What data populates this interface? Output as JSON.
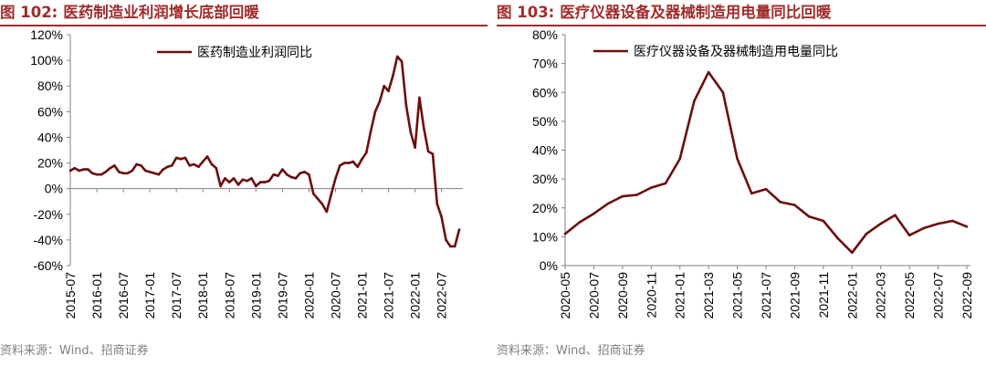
{
  "left": {
    "fig_label": "图 102:",
    "fig_title": "医药制造业利润增长底部回暖",
    "source": "资料来源：Wind、招商证券",
    "chart_data": {
      "type": "line",
      "title": "",
      "xlabel": "",
      "ylabel": "",
      "ylim": [
        -60,
        120
      ],
      "yticks": [
        "120%",
        "100%",
        "80%",
        "60%",
        "40%",
        "20%",
        "0%",
        "-20%",
        "-40%",
        "-60%"
      ],
      "xticks": [
        "2015-07",
        "2016-01",
        "2016-07",
        "2017-01",
        "2017-07",
        "2018-01",
        "2018-07",
        "2019-01",
        "2019-07",
        "2020-01",
        "2020-07",
        "2021-01",
        "2021-07",
        "2022-01",
        "2022-07"
      ],
      "legend_position": "top",
      "line_color": "#6b0f0f",
      "series": [
        {
          "name": "医药制造业利润同比",
          "points": [
            [
              "2015-07",
              14
            ],
            [
              "2015-08",
              16
            ],
            [
              "2015-09",
              14
            ],
            [
              "2015-10",
              15
            ],
            [
              "2015-11",
              15
            ],
            [
              "2015-12",
              12
            ],
            [
              "2016-01",
              11
            ],
            [
              "2016-02",
              11
            ],
            [
              "2016-03",
              13
            ],
            [
              "2016-04",
              16
            ],
            [
              "2016-05",
              18
            ],
            [
              "2016-06",
              13
            ],
            [
              "2016-07",
              12
            ],
            [
              "2016-08",
              12
            ],
            [
              "2016-09",
              14
            ],
            [
              "2016-10",
              19
            ],
            [
              "2016-11",
              18
            ],
            [
              "2016-12",
              14
            ],
            [
              "2017-01",
              13
            ],
            [
              "2017-02",
              12
            ],
            [
              "2017-03",
              11
            ],
            [
              "2017-04",
              15
            ],
            [
              "2017-05",
              17
            ],
            [
              "2017-06",
              18
            ],
            [
              "2017-07",
              24
            ],
            [
              "2017-08",
              23
            ],
            [
              "2017-09",
              24
            ],
            [
              "2017-10",
              18
            ],
            [
              "2017-11",
              19
            ],
            [
              "2017-12",
              17
            ],
            [
              "2018-01",
              21
            ],
            [
              "2018-02",
              25
            ],
            [
              "2018-03",
              19
            ],
            [
              "2018-04",
              16
            ],
            [
              "2018-05",
              2
            ],
            [
              "2018-06",
              8
            ],
            [
              "2018-07",
              5
            ],
            [
              "2018-08",
              8
            ],
            [
              "2018-09",
              3
            ],
            [
              "2018-10",
              7
            ],
            [
              "2018-11",
              6
            ],
            [
              "2018-12",
              8
            ],
            [
              "2019-01",
              2
            ],
            [
              "2019-02",
              5
            ],
            [
              "2019-03",
              5
            ],
            [
              "2019-04",
              6
            ],
            [
              "2019-05",
              11
            ],
            [
              "2019-06",
              10
            ],
            [
              "2019-07",
              15
            ],
            [
              "2019-08",
              11
            ],
            [
              "2019-09",
              9
            ],
            [
              "2019-10",
              8
            ],
            [
              "2019-11",
              12
            ],
            [
              "2019-12",
              13
            ],
            [
              "2020-01",
              11
            ],
            [
              "2020-02",
              -4
            ],
            [
              "2020-03",
              -8
            ],
            [
              "2020-04",
              -12
            ],
            [
              "2020-05",
              -18
            ],
            [
              "2020-06",
              -5
            ],
            [
              "2020-07",
              8
            ],
            [
              "2020-08",
              18
            ],
            [
              "2020-09",
              20
            ],
            [
              "2020-10",
              20
            ],
            [
              "2020-11",
              21
            ],
            [
              "2020-12",
              17
            ],
            [
              "2021-01",
              23
            ],
            [
              "2021-02",
              28
            ],
            [
              "2021-03",
              45
            ],
            [
              "2021-04",
              60
            ],
            [
              "2021-05",
              68
            ],
            [
              "2021-06",
              80
            ],
            [
              "2021-07",
              76
            ],
            [
              "2021-08",
              88
            ],
            [
              "2021-09",
              103
            ],
            [
              "2021-10",
              99
            ],
            [
              "2021-11",
              65
            ],
            [
              "2021-12",
              44
            ],
            [
              "2022-01",
              32
            ],
            [
              "2022-02",
              71
            ],
            [
              "2022-03",
              47
            ],
            [
              "2022-04",
              29
            ],
            [
              "2022-05",
              27
            ],
            [
              "2022-06",
              -12
            ],
            [
              "2022-07",
              -22
            ],
            [
              "2022-08",
              -40
            ],
            [
              "2022-09",
              -45
            ],
            [
              "2022-10",
              -45
            ],
            [
              "2022-11",
              -32
            ]
          ]
        }
      ]
    }
  },
  "right": {
    "fig_label": "图 103:",
    "fig_title": "医疗仪器设备及器械制造用电量同比回暖",
    "source": "资料来源：Wind、招商证券",
    "chart_data": {
      "type": "line",
      "title": "",
      "xlabel": "",
      "ylabel": "",
      "ylim": [
        0,
        80
      ],
      "yticks": [
        "80%",
        "70%",
        "60%",
        "50%",
        "40%",
        "30%",
        "20%",
        "10%",
        "0%"
      ],
      "xticks": [
        "2020-05",
        "2020-07",
        "2020-09",
        "2020-11",
        "2021-01",
        "2021-03",
        "2021-05",
        "2021-07",
        "2021-09",
        "2021-11",
        "2022-01",
        "2022-03",
        "2022-05",
        "2022-07",
        "2022-09"
      ],
      "legend_position": "top",
      "line_color": "#6b0f0f",
      "series": [
        {
          "name": "医疗仪器设备及器械制造用电量同比",
          "points": [
            [
              "2020-05",
              11
            ],
            [
              "2020-06",
              15
            ],
            [
              "2020-07",
              18
            ],
            [
              "2020-08",
              21.5
            ],
            [
              "2020-09",
              24
            ],
            [
              "2020-10",
              24.5
            ],
            [
              "2020-11",
              27
            ],
            [
              "2020-12",
              28.5
            ],
            [
              "2021-01",
              37
            ],
            [
              "2021-02",
              57
            ],
            [
              "2021-03",
              67
            ],
            [
              "2021-04",
              60
            ],
            [
              "2021-05",
              37
            ],
            [
              "2021-06",
              25
            ],
            [
              "2021-07",
              26.5
            ],
            [
              "2021-08",
              22
            ],
            [
              "2021-09",
              21
            ],
            [
              "2021-10",
              17
            ],
            [
              "2021-11",
              15.5
            ],
            [
              "2021-12",
              9.5
            ],
            [
              "2022-01",
              4.5
            ],
            [
              "2022-02",
              11
            ],
            [
              "2022-03",
              14.5
            ],
            [
              "2022-04",
              17.5
            ],
            [
              "2022-05",
              10.5
            ],
            [
              "2022-06",
              13
            ],
            [
              "2022-07",
              14.5
            ],
            [
              "2022-08",
              15.5
            ],
            [
              "2022-09",
              13.5
            ]
          ]
        }
      ]
    }
  }
}
